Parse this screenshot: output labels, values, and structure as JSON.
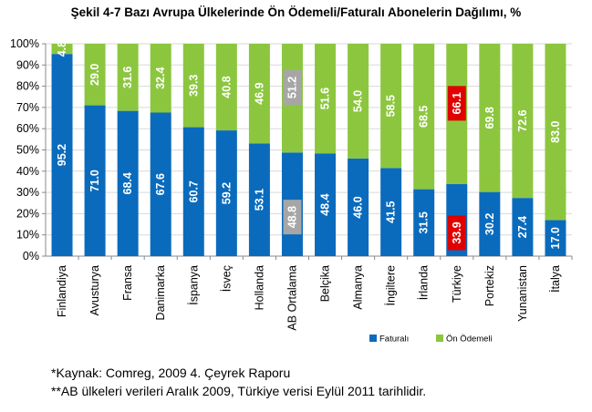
{
  "title": "Şekil 4-7 Bazı Avrupa Ülkelerinde Ön Ödemeli/Faturalı Abonelerin Dağılımı, %",
  "footnotes": [
    "*Kaynak: Comreg, 2009 4. Çeyrek Raporu",
    "**AB ülkeleri verileri Aralık 2009, Türkiye verisi Eylül 2011 tarihlidir."
  ],
  "colors": {
    "faturali": "#0a6bbd",
    "on_odemeli": "#8cc63f",
    "eu_highlight": "#a6a6a6",
    "turkey_highlight": "#e00000",
    "grid": "#d9d9d9",
    "axis": "#888888"
  },
  "chart_data": {
    "type": "bar",
    "stacked": true,
    "percent": true,
    "categories": [
      "Finlandiya",
      "Avusturya",
      "Fransa",
      "Danimarka",
      "İspanya",
      "İsveç",
      "Hollanda",
      "AB Ortalama",
      "Belçika",
      "Almanya",
      "İngiltere",
      "İrlanda",
      "Türkiye",
      "Portekiz",
      "Yunanistan",
      "İtalya"
    ],
    "series": [
      {
        "name": "Faturalı",
        "values": [
          95.2,
          71.0,
          68.4,
          67.6,
          60.7,
          59.2,
          53.1,
          48.8,
          48.4,
          46.0,
          41.5,
          31.5,
          33.9,
          30.2,
          27.4,
          17.0
        ]
      },
      {
        "name": "Ön Ödemeli",
        "values": [
          4.8,
          29.0,
          31.6,
          32.4,
          39.3,
          40.8,
          46.9,
          51.2,
          51.6,
          54.0,
          58.5,
          68.5,
          66.1,
          69.8,
          72.6,
          83.0
        ]
      }
    ],
    "value_labels": {
      "Faturalı": [
        "95.2",
        "71.0",
        "68.4",
        "67.6",
        "60.7",
        "59.2",
        "53.1",
        "48.8",
        "48.4",
        "46.0",
        "41.5",
        "31.5",
        "33.9",
        "30.2",
        "27.4",
        "17.0"
      ],
      "Ön Ödemeli": [
        "4.8",
        "29.0",
        "31.6",
        "32.4",
        "39.3",
        "40.8",
        "46.9",
        "51.2",
        "51.6",
        "54.0",
        "58.5",
        "68.5",
        "66.1",
        "69.8",
        "72.6",
        "83.0"
      ]
    },
    "highlighted_categories": {
      "AB Ortalama": "eu",
      "Türkiye": "turkey"
    },
    "y_ticks": [
      "0%",
      "10%",
      "20%",
      "30%",
      "40%",
      "50%",
      "60%",
      "70%",
      "80%",
      "90%",
      "100%"
    ],
    "ylim": [
      0,
      100
    ],
    "grid": true,
    "legend_position": "bottom-right"
  }
}
